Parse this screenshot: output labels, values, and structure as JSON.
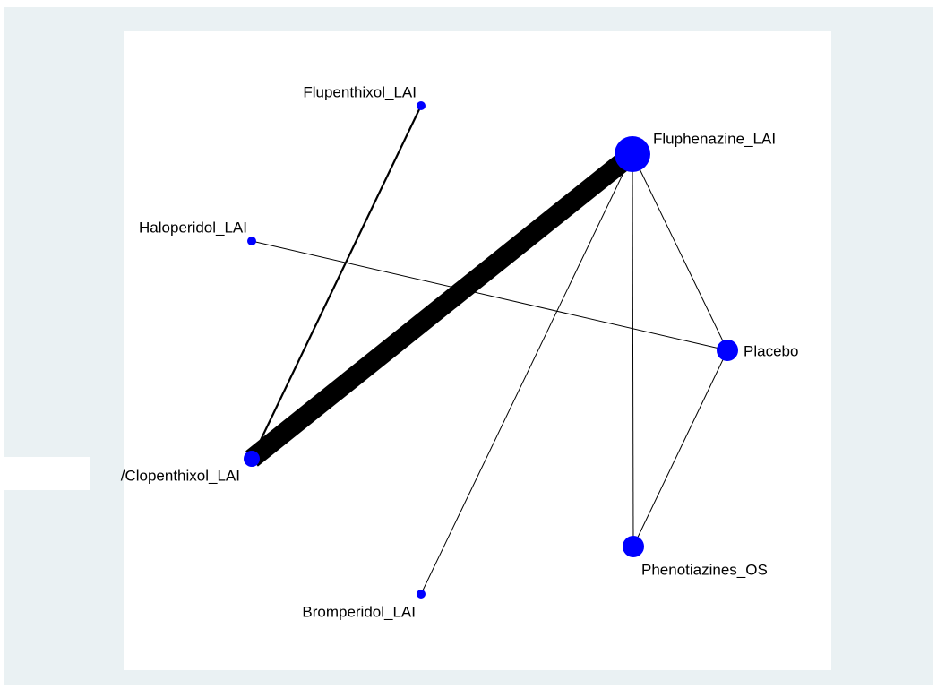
{
  "nodes": [
    {
      "label": "Flupenthixol_LAI"
    },
    {
      "label": "Fluphenazine_LAI"
    },
    {
      "label": "Haloperidol_LAI"
    },
    {
      "label": "Placebo"
    },
    {
      "label": "/Clopenthixol_LAI"
    },
    {
      "label": "Phenotiazines_OS"
    },
    {
      "label": "Bromperidol_LAI"
    }
  ]
}
